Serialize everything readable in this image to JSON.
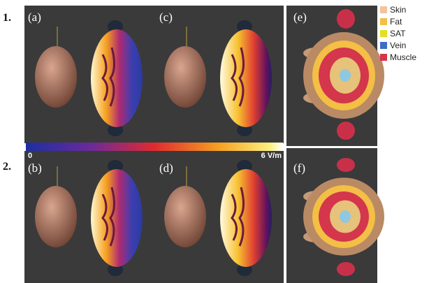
{
  "rows": [
    {
      "label": "1."
    },
    {
      "label": "2."
    }
  ],
  "panels": [
    {
      "label": "(a)"
    },
    {
      "label": "(b)"
    },
    {
      "label": "(c)"
    },
    {
      "label": "(d)"
    },
    {
      "label": "(e)"
    },
    {
      "label": "(f)"
    }
  ],
  "colorbar": {
    "min_label": "0",
    "max_label": "6 V/m"
  },
  "legend": [
    {
      "name": "Skin",
      "color": "#f2c39c"
    },
    {
      "name": "Fat",
      "color": "#f3bf45"
    },
    {
      "name": "SAT",
      "color": "#e5df22"
    },
    {
      "name": "Vein",
      "color": "#3d6fc2"
    },
    {
      "name": "Muscle",
      "color": "#d4364c"
    }
  ]
}
